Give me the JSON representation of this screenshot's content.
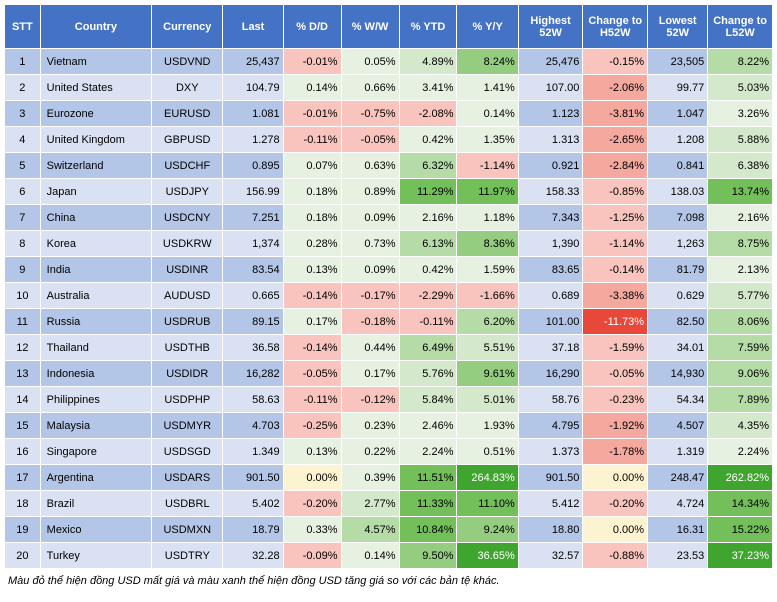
{
  "columns": {
    "headers": [
      "STT",
      "Country",
      "Currency",
      "Last",
      "% D/D",
      "% W/W",
      "% YTD",
      "% Y/Y",
      "Highest 52W",
      "Change to H52W",
      "Lowest 52W",
      "Change to L52W"
    ],
    "widths": [
      32,
      100,
      64,
      54,
      52,
      52,
      52,
      55,
      58,
      58,
      54,
      58
    ]
  },
  "footnote": "Màu đỏ thể hiện đồng USD mất giá và màu xanh thể hiện đồng USD tăng giá so với các bản tệ khác.",
  "colors": {
    "header_bg": "#4472c4",
    "row_odd": "#b4c6e7",
    "row_even": "#d9e1f2",
    "neg_light": "#f8c4bd",
    "neg_mid": "#f4a89e",
    "neg_strong": "#e8483a",
    "neutral": "#fef3d0",
    "pos_vlight": "#e7f1e1",
    "pos_light": "#d4e8cb",
    "pos_mid": "#b5dba7",
    "pos_midstrong": "#94cd80",
    "pos_strong": "#73c05b",
    "pos_vstrong": "#3fa52f"
  },
  "rows": [
    {
      "stt": "1",
      "country": "Vietnam",
      "currency": "USDVND",
      "last": "25,437",
      "dd": {
        "v": "-0.01%",
        "c": "#f8c4bd"
      },
      "ww": {
        "v": "0.05%",
        "c": "#e7f1e1"
      },
      "ytd": {
        "v": "4.89%",
        "c": "#d4e8cb"
      },
      "yy": {
        "v": "8.24%",
        "c": "#94cd80"
      },
      "h52w": "25,476",
      "ch52w": {
        "v": "-0.15%",
        "c": "#f8c4bd"
      },
      "l52w": "23,505",
      "cl52w": {
        "v": "8.22%",
        "c": "#b5dba7"
      }
    },
    {
      "stt": "2",
      "country": "United States",
      "currency": "DXY",
      "last": "104.79",
      "dd": {
        "v": "0.14%",
        "c": "#e7f1e1"
      },
      "ww": {
        "v": "0.66%",
        "c": "#e7f1e1"
      },
      "ytd": {
        "v": "3.41%",
        "c": "#e7f1e1"
      },
      "yy": {
        "v": "1.41%",
        "c": "#e7f1e1"
      },
      "h52w": "107.00",
      "ch52w": {
        "v": "-2.06%",
        "c": "#f4a89e"
      },
      "l52w": "99.77",
      "cl52w": {
        "v": "5.03%",
        "c": "#d4e8cb"
      }
    },
    {
      "stt": "3",
      "country": "Eurozone",
      "currency": "EURUSD",
      "last": "1.081",
      "dd": {
        "v": "-0.01%",
        "c": "#f8c4bd"
      },
      "ww": {
        "v": "-0.75%",
        "c": "#f8c4bd"
      },
      "ytd": {
        "v": "-2.08%",
        "c": "#f8c4bd"
      },
      "yy": {
        "v": "0.14%",
        "c": "#e7f1e1"
      },
      "h52w": "1.123",
      "ch52w": {
        "v": "-3.81%",
        "c": "#f4a89e"
      },
      "l52w": "1.047",
      "cl52w": {
        "v": "3.26%",
        "c": "#e7f1e1"
      }
    },
    {
      "stt": "4",
      "country": "United Kingdom",
      "currency": "GBPUSD",
      "last": "1.278",
      "dd": {
        "v": "-0.11%",
        "c": "#f8c4bd"
      },
      "ww": {
        "v": "-0.05%",
        "c": "#f8c4bd"
      },
      "ytd": {
        "v": "0.42%",
        "c": "#e7f1e1"
      },
      "yy": {
        "v": "1.35%",
        "c": "#e7f1e1"
      },
      "h52w": "1.313",
      "ch52w": {
        "v": "-2.65%",
        "c": "#f4a89e"
      },
      "l52w": "1.208",
      "cl52w": {
        "v": "5.88%",
        "c": "#d4e8cb"
      }
    },
    {
      "stt": "5",
      "country": "Switzerland",
      "currency": "USDCHF",
      "last": "0.895",
      "dd": {
        "v": "0.07%",
        "c": "#e7f1e1"
      },
      "ww": {
        "v": "0.63%",
        "c": "#e7f1e1"
      },
      "ytd": {
        "v": "6.32%",
        "c": "#b5dba7"
      },
      "yy": {
        "v": "-1.14%",
        "c": "#f8c4bd"
      },
      "h52w": "0.921",
      "ch52w": {
        "v": "-2.84%",
        "c": "#f4a89e"
      },
      "l52w": "0.841",
      "cl52w": {
        "v": "6.38%",
        "c": "#d4e8cb"
      }
    },
    {
      "stt": "6",
      "country": "Japan",
      "currency": "USDJPY",
      "last": "156.99",
      "dd": {
        "v": "0.18%",
        "c": "#e7f1e1"
      },
      "ww": {
        "v": "0.89%",
        "c": "#e7f1e1"
      },
      "ytd": {
        "v": "11.29%",
        "c": "#73c05b"
      },
      "yy": {
        "v": "11.97%",
        "c": "#73c05b"
      },
      "h52w": "158.33",
      "ch52w": {
        "v": "-0.85%",
        "c": "#f8c4bd"
      },
      "l52w": "138.03",
      "cl52w": {
        "v": "13.74%",
        "c": "#73c05b"
      }
    },
    {
      "stt": "7",
      "country": "China",
      "currency": "USDCNY",
      "last": "7.251",
      "dd": {
        "v": "0.18%",
        "c": "#e7f1e1"
      },
      "ww": {
        "v": "0.09%",
        "c": "#e7f1e1"
      },
      "ytd": {
        "v": "2.16%",
        "c": "#e7f1e1"
      },
      "yy": {
        "v": "1.18%",
        "c": "#e7f1e1"
      },
      "h52w": "7.343",
      "ch52w": {
        "v": "-1.25%",
        "c": "#f8c4bd"
      },
      "l52w": "7.098",
      "cl52w": {
        "v": "2.16%",
        "c": "#e7f1e1"
      }
    },
    {
      "stt": "8",
      "country": "Korea",
      "currency": "USDKRW",
      "last": "1,374",
      "dd": {
        "v": "0.28%",
        "c": "#e7f1e1"
      },
      "ww": {
        "v": "0.73%",
        "c": "#e7f1e1"
      },
      "ytd": {
        "v": "6.13%",
        "c": "#b5dba7"
      },
      "yy": {
        "v": "8.36%",
        "c": "#94cd80"
      },
      "h52w": "1,390",
      "ch52w": {
        "v": "-1.14%",
        "c": "#f8c4bd"
      },
      "l52w": "1,263",
      "cl52w": {
        "v": "8.75%",
        "c": "#b5dba7"
      }
    },
    {
      "stt": "9",
      "country": "India",
      "currency": "USDINR",
      "last": "83.54",
      "dd": {
        "v": "0.13%",
        "c": "#e7f1e1"
      },
      "ww": {
        "v": "0.09%",
        "c": "#e7f1e1"
      },
      "ytd": {
        "v": "0.42%",
        "c": "#e7f1e1"
      },
      "yy": {
        "v": "1.59%",
        "c": "#e7f1e1"
      },
      "h52w": "83.65",
      "ch52w": {
        "v": "-0.14%",
        "c": "#f8c4bd"
      },
      "l52w": "81.79",
      "cl52w": {
        "v": "2.13%",
        "c": "#e7f1e1"
      }
    },
    {
      "stt": "10",
      "country": "Australia",
      "currency": "AUDUSD",
      "last": "0.665",
      "dd": {
        "v": "-0.14%",
        "c": "#f8c4bd"
      },
      "ww": {
        "v": "-0.17%",
        "c": "#f8c4bd"
      },
      "ytd": {
        "v": "-2.29%",
        "c": "#f8c4bd"
      },
      "yy": {
        "v": "-1.66%",
        "c": "#f8c4bd"
      },
      "h52w": "0.689",
      "ch52w": {
        "v": "-3.38%",
        "c": "#f4a89e"
      },
      "l52w": "0.629",
      "cl52w": {
        "v": "5.77%",
        "c": "#d4e8cb"
      }
    },
    {
      "stt": "11",
      "country": "Russia",
      "currency": "USDRUB",
      "last": "89.15",
      "dd": {
        "v": "0.17%",
        "c": "#e7f1e1"
      },
      "ww": {
        "v": "-0.18%",
        "c": "#f8c4bd"
      },
      "ytd": {
        "v": "-0.11%",
        "c": "#f8c4bd"
      },
      "yy": {
        "v": "6.20%",
        "c": "#b5dba7"
      },
      "h52w": "101.00",
      "ch52w": {
        "v": "-11.73%",
        "c": "#e8483a",
        "tc": "#fff"
      },
      "l52w": "82.50",
      "cl52w": {
        "v": "8.06%",
        "c": "#b5dba7"
      }
    },
    {
      "stt": "12",
      "country": "Thailand",
      "currency": "USDTHB",
      "last": "36.58",
      "dd": {
        "v": "-0.14%",
        "c": "#f8c4bd"
      },
      "ww": {
        "v": "0.44%",
        "c": "#e7f1e1"
      },
      "ytd": {
        "v": "6.49%",
        "c": "#b5dba7"
      },
      "yy": {
        "v": "5.51%",
        "c": "#d4e8cb"
      },
      "h52w": "37.18",
      "ch52w": {
        "v": "-1.59%",
        "c": "#f8c4bd"
      },
      "l52w": "34.01",
      "cl52w": {
        "v": "7.59%",
        "c": "#b5dba7"
      }
    },
    {
      "stt": "13",
      "country": "Indonesia",
      "currency": "USDIDR",
      "last": "16,282",
      "dd": {
        "v": "-0.05%",
        "c": "#f8c4bd"
      },
      "ww": {
        "v": "0.17%",
        "c": "#e7f1e1"
      },
      "ytd": {
        "v": "5.76%",
        "c": "#d4e8cb"
      },
      "yy": {
        "v": "9.61%",
        "c": "#94cd80"
      },
      "h52w": "16,290",
      "ch52w": {
        "v": "-0.05%",
        "c": "#f8c4bd"
      },
      "l52w": "14,930",
      "cl52w": {
        "v": "9.06%",
        "c": "#b5dba7"
      }
    },
    {
      "stt": "14",
      "country": "Philippines",
      "currency": "USDPHP",
      "last": "58.63",
      "dd": {
        "v": "-0.11%",
        "c": "#f8c4bd"
      },
      "ww": {
        "v": "-0.12%",
        "c": "#f8c4bd"
      },
      "ytd": {
        "v": "5.84%",
        "c": "#d4e8cb"
      },
      "yy": {
        "v": "5.01%",
        "c": "#d4e8cb"
      },
      "h52w": "58.76",
      "ch52w": {
        "v": "-0.23%",
        "c": "#f8c4bd"
      },
      "l52w": "54.34",
      "cl52w": {
        "v": "7.89%",
        "c": "#b5dba7"
      }
    },
    {
      "stt": "15",
      "country": "Malaysia",
      "currency": "USDMYR",
      "last": "4.703",
      "dd": {
        "v": "-0.25%",
        "c": "#f8c4bd"
      },
      "ww": {
        "v": "0.23%",
        "c": "#e7f1e1"
      },
      "ytd": {
        "v": "2.46%",
        "c": "#e7f1e1"
      },
      "yy": {
        "v": "1.93%",
        "c": "#e7f1e1"
      },
      "h52w": "4.795",
      "ch52w": {
        "v": "-1.92%",
        "c": "#f4a89e"
      },
      "l52w": "4.507",
      "cl52w": {
        "v": "4.35%",
        "c": "#d4e8cb"
      }
    },
    {
      "stt": "16",
      "country": "Singapore",
      "currency": "USDSGD",
      "last": "1.349",
      "dd": {
        "v": "0.13%",
        "c": "#e7f1e1"
      },
      "ww": {
        "v": "0.22%",
        "c": "#e7f1e1"
      },
      "ytd": {
        "v": "2.24%",
        "c": "#e7f1e1"
      },
      "yy": {
        "v": "0.51%",
        "c": "#e7f1e1"
      },
      "h52w": "1.373",
      "ch52w": {
        "v": "-1.78%",
        "c": "#f4a89e"
      },
      "l52w": "1.319",
      "cl52w": {
        "v": "2.24%",
        "c": "#e7f1e1"
      }
    },
    {
      "stt": "17",
      "country": "Argentina",
      "currency": "USDARS",
      "last": "901.50",
      "dd": {
        "v": "0.00%",
        "c": "#fef3d0"
      },
      "ww": {
        "v": "0.39%",
        "c": "#e7f1e1"
      },
      "ytd": {
        "v": "11.51%",
        "c": "#73c05b"
      },
      "yy": {
        "v": "264.83%",
        "c": "#3fa52f",
        "tc": "#fff"
      },
      "h52w": "901.50",
      "ch52w": {
        "v": "0.00%",
        "c": "#fef3d0"
      },
      "l52w": "248.47",
      "cl52w": {
        "v": "262.82%",
        "c": "#3fa52f",
        "tc": "#fff"
      }
    },
    {
      "stt": "18",
      "country": "Brazil",
      "currency": "USDBRL",
      "last": "5.402",
      "dd": {
        "v": "-0.20%",
        "c": "#f8c4bd"
      },
      "ww": {
        "v": "2.77%",
        "c": "#d4e8cb"
      },
      "ytd": {
        "v": "11.33%",
        "c": "#73c05b"
      },
      "yy": {
        "v": "11.10%",
        "c": "#73c05b"
      },
      "h52w": "5.412",
      "ch52w": {
        "v": "-0.20%",
        "c": "#f8c4bd"
      },
      "l52w": "4.724",
      "cl52w": {
        "v": "14.34%",
        "c": "#73c05b"
      }
    },
    {
      "stt": "19",
      "country": "Mexico",
      "currency": "USDMXN",
      "last": "18.79",
      "dd": {
        "v": "0.33%",
        "c": "#e7f1e1"
      },
      "ww": {
        "v": "4.57%",
        "c": "#b5dba7"
      },
      "ytd": {
        "v": "10.84%",
        "c": "#73c05b"
      },
      "yy": {
        "v": "9.24%",
        "c": "#94cd80"
      },
      "h52w": "18.80",
      "ch52w": {
        "v": "0.00%",
        "c": "#fef3d0"
      },
      "l52w": "16.31",
      "cl52w": {
        "v": "15.22%",
        "c": "#73c05b"
      }
    },
    {
      "stt": "20",
      "country": "Turkey",
      "currency": "USDTRY",
      "last": "32.28",
      "dd": {
        "v": "-0.09%",
        "c": "#f8c4bd"
      },
      "ww": {
        "v": "0.14%",
        "c": "#e7f1e1"
      },
      "ytd": {
        "v": "9.50%",
        "c": "#94cd80"
      },
      "yy": {
        "v": "36.65%",
        "c": "#3fa52f",
        "tc": "#fff"
      },
      "h52w": "32.57",
      "ch52w": {
        "v": "-0.88%",
        "c": "#f8c4bd"
      },
      "l52w": "23.53",
      "cl52w": {
        "v": "37.23%",
        "c": "#3fa52f",
        "tc": "#fff"
      }
    }
  ]
}
